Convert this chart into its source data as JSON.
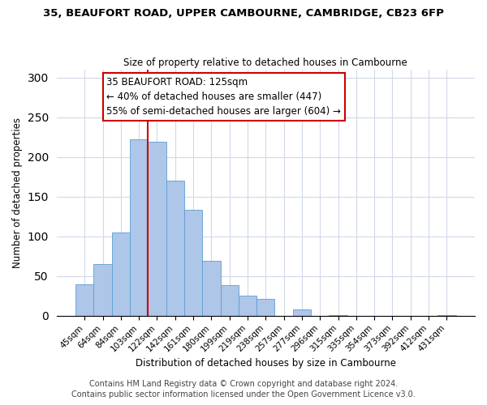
{
  "title_line1": "35, BEAUFORT ROAD, UPPER CAMBOURNE, CAMBRIDGE, CB23 6FP",
  "title_line2": "Size of property relative to detached houses in Cambourne",
  "xlabel": "Distribution of detached houses by size in Cambourne",
  "ylabel": "Number of detached properties",
  "bar_labels": [
    "45sqm",
    "64sqm",
    "84sqm",
    "103sqm",
    "122sqm",
    "142sqm",
    "161sqm",
    "180sqm",
    "199sqm",
    "219sqm",
    "238sqm",
    "257sqm",
    "277sqm",
    "296sqm",
    "315sqm",
    "335sqm",
    "354sqm",
    "373sqm",
    "392sqm",
    "412sqm",
    "431sqm"
  ],
  "bar_values": [
    40,
    65,
    105,
    222,
    219,
    170,
    134,
    69,
    39,
    25,
    21,
    0,
    8,
    0,
    1,
    0,
    0,
    0,
    0,
    0,
    1
  ],
  "bar_color": "#aec6e8",
  "bar_edge_color": "#5a9fd4",
  "vline_color": "#cc0000",
  "vline_x_index": 3.5,
  "annotation_text": "35 BEAUFORT ROAD: 125sqm\n← 40% of detached houses are smaller (447)\n55% of semi-detached houses are larger (604) →",
  "annotation_box_color": "#ffffff",
  "annotation_box_edge": "#cc0000",
  "ylim": [
    0,
    310
  ],
  "yticks": [
    0,
    50,
    100,
    150,
    200,
    250,
    300
  ],
  "footer_line1": "Contains HM Land Registry data © Crown copyright and database right 2024.",
  "footer_line2": "Contains public sector information licensed under the Open Government Licence v3.0.",
  "background_color": "#ffffff",
  "grid_color": "#d0d8e8",
  "title_fontsize": 9.5,
  "subtitle_fontsize": 8.5,
  "axis_label_fontsize": 8.5,
  "tick_fontsize": 7.5,
  "annotation_fontsize": 8.5,
  "footer_fontsize": 7
}
